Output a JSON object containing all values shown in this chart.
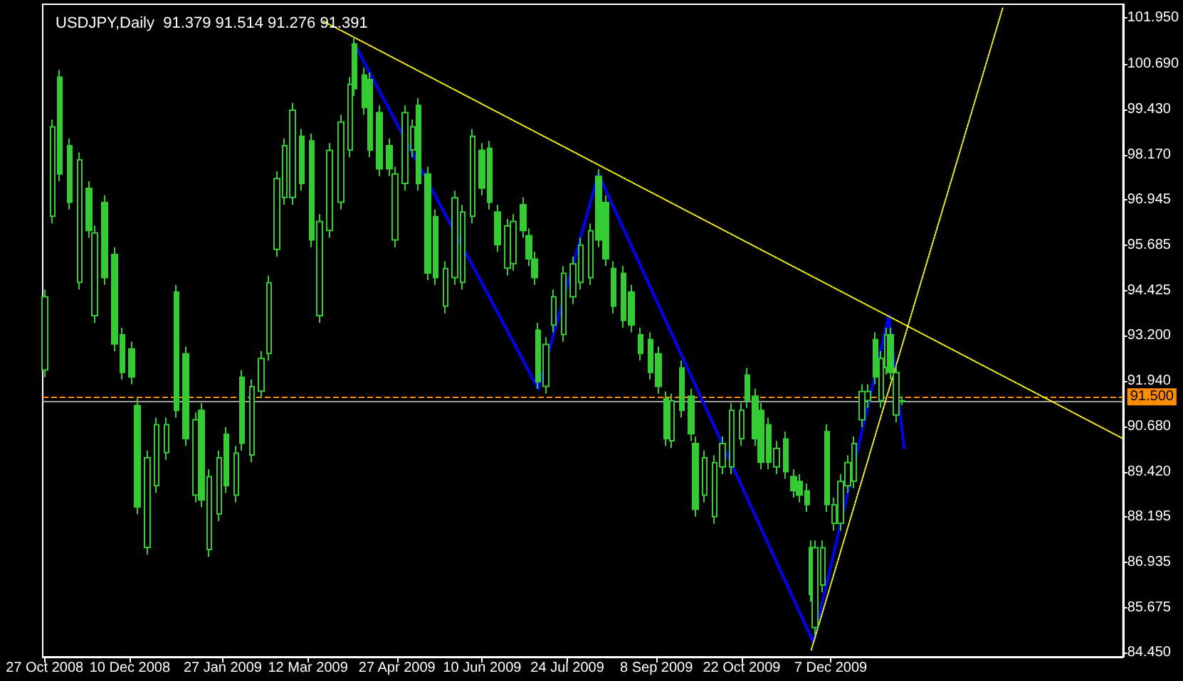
{
  "chart_data": {
    "type": "candlestick",
    "title": "USDJPY,Daily  91.379 91.514 91.276 91.391",
    "color": "#33cc33",
    "x": [
      "2008-10-27",
      "2008-10-31",
      "2008-11-04",
      "2008-11-09",
      "2008-11-14",
      "2008-11-19",
      "2008-11-22",
      "2008-11-27",
      "2008-12-02",
      "2008-12-06",
      "2008-12-11",
      "2008-12-14",
      "2008-12-19",
      "2008-12-24",
      "2008-12-29",
      "2009-01-03",
      "2009-01-08",
      "2009-01-13",
      "2009-01-16",
      "2009-01-20",
      "2009-01-25",
      "2009-01-29",
      "2009-02-03",
      "2009-02-06",
      "2009-02-11",
      "2009-02-16",
      "2009-02-20",
      "2009-02-24",
      "2009-02-28",
      "2009-03-04",
      "2009-03-09",
      "2009-03-14",
      "2009-03-18",
      "2009-03-23",
      "2009-03-29",
      "2009-04-03",
      "2009-04-05",
      "2009-04-10",
      "2009-04-13",
      "2009-04-18",
      "2009-04-23",
      "2009-04-26",
      "2009-05-01",
      "2009-05-05",
      "2009-05-08",
      "2009-05-13",
      "2009-05-17",
      "2009-05-22",
      "2009-05-27",
      "2009-05-31",
      "2009-06-05",
      "2009-06-10",
      "2009-06-14",
      "2009-06-18",
      "2009-06-23",
      "2009-06-26",
      "2009-07-01",
      "2009-07-04",
      "2009-07-07",
      "2009-07-09",
      "2009-07-13",
      "2009-07-17",
      "2009-07-22",
      "2009-07-27",
      "2009-07-31",
      "2009-08-05",
      "2009-08-09",
      "2009-08-13",
      "2009-08-17",
      "2009-08-22",
      "2009-08-26",
      "2009-08-31",
      "2009-09-05",
      "2009-09-09",
      "2009-09-13",
      "2009-09-16",
      "2009-09-21",
      "2009-09-26",
      "2009-09-28",
      "2009-10-03",
      "2009-10-08",
      "2009-10-12",
      "2009-10-17",
      "2009-10-22",
      "2009-10-25",
      "2009-10-29",
      "2009-11-01",
      "2009-11-05",
      "2009-11-09",
      "2009-11-14",
      "2009-11-18",
      "2009-11-21",
      "2009-11-25",
      "2009-11-27",
      "2009-11-29",
      "2009-12-03",
      "2009-12-05",
      "2009-12-09",
      "2009-12-12",
      "2009-12-16",
      "2009-12-19",
      "2009-12-23",
      "2009-12-26",
      "2009-12-30",
      "2010-01-02",
      "2010-01-05",
      "2010-01-07",
      "2010-01-10",
      "2010-01-13"
    ],
    "ohlc": [
      [
        92.24,
        94.46,
        92.04,
        94.26
      ],
      [
        96.48,
        99.15,
        96.28,
        98.95
      ],
      [
        100.32,
        100.52,
        97.45,
        97.65
      ],
      [
        98.43,
        98.63,
        96.67,
        96.87
      ],
      [
        94.66,
        98.24,
        94.46,
        98.04
      ],
      [
        97.25,
        97.45,
        95.89,
        96.09
      ],
      [
        93.74,
        96.22,
        93.54,
        96.02
      ],
      [
        96.86,
        97.06,
        94.59,
        94.79
      ],
      [
        95.43,
        95.63,
        92.76,
        92.96
      ],
      [
        93.21,
        93.41,
        91.98,
        92.18
      ],
      [
        92.82,
        93.02,
        91.85,
        92.05
      ],
      [
        91.26,
        91.46,
        88.26,
        88.46
      ],
      [
        87.35,
        90.02,
        87.15,
        89.82
      ],
      [
        89.05,
        90.93,
        88.85,
        90.73
      ],
      [
        89.96,
        90.93,
        89.76,
        90.73
      ],
      [
        94.39,
        94.59,
        90.93,
        91.13
      ],
      [
        92.69,
        92.89,
        90.15,
        90.35
      ],
      [
        88.79,
        91.07,
        88.59,
        90.87
      ],
      [
        91.13,
        91.33,
        88.46,
        88.66
      ],
      [
        87.29,
        89.5,
        87.09,
        89.3
      ],
      [
        88.27,
        90.02,
        88.07,
        89.82
      ],
      [
        90.47,
        90.67,
        88.85,
        89.05
      ],
      [
        88.79,
        90.15,
        88.59,
        89.95
      ],
      [
        92.04,
        92.24,
        90.02,
        90.22
      ],
      [
        89.9,
        91.98,
        89.7,
        91.78
      ],
      [
        91.66,
        92.76,
        91.46,
        92.56
      ],
      [
        92.7,
        94.85,
        92.5,
        94.65
      ],
      [
        95.57,
        97.72,
        95.37,
        97.52
      ],
      [
        97.0,
        98.63,
        96.8,
        98.43
      ],
      [
        97.0,
        99.61,
        96.8,
        99.41
      ],
      [
        98.69,
        98.89,
        97.19,
        97.39
      ],
      [
        98.56,
        98.76,
        95.63,
        95.83
      ],
      [
        93.74,
        96.54,
        93.54,
        96.34
      ],
      [
        96.09,
        98.5,
        95.89,
        98.3
      ],
      [
        96.87,
        99.28,
        96.67,
        99.08
      ],
      [
        98.31,
        100.32,
        98.11,
        100.12
      ],
      [
        101.23,
        101.43,
        99.8,
        100.0
      ],
      [
        100.38,
        100.58,
        99.28,
        99.48
      ],
      [
        100.25,
        100.45,
        98.11,
        98.31
      ],
      [
        99.34,
        99.54,
        97.59,
        97.79
      ],
      [
        98.43,
        98.63,
        97.59,
        97.79
      ],
      [
        95.83,
        97.85,
        95.63,
        97.65
      ],
      [
        97.39,
        99.54,
        97.19,
        99.34
      ],
      [
        98.31,
        99.15,
        98.11,
        98.95
      ],
      [
        99.54,
        99.74,
        97.19,
        97.39
      ],
      [
        97.65,
        97.85,
        94.72,
        94.92
      ],
      [
        96.47,
        96.67,
        94.59,
        94.79
      ],
      [
        94.0,
        95.24,
        93.8,
        95.04
      ],
      [
        94.79,
        97.19,
        94.59,
        96.99
      ],
      [
        94.66,
        96.8,
        94.46,
        96.6
      ],
      [
        96.48,
        98.89,
        96.28,
        98.69
      ],
      [
        98.3,
        98.5,
        97.06,
        97.26
      ],
      [
        98.36,
        98.56,
        96.67,
        96.87
      ],
      [
        96.6,
        96.8,
        95.5,
        95.7
      ],
      [
        95.05,
        96.41,
        94.85,
        96.21
      ],
      [
        95.18,
        96.54,
        94.98,
        96.34
      ],
      [
        96.8,
        97.0,
        95.89,
        96.09
      ],
      [
        95.95,
        96.15,
        95.11,
        95.31
      ],
      [
        95.3,
        95.5,
        94.59,
        94.79
      ],
      [
        93.34,
        93.54,
        91.72,
        91.92
      ],
      [
        91.79,
        93.15,
        91.59,
        92.95
      ],
      [
        93.48,
        94.46,
        93.28,
        94.26
      ],
      [
        93.22,
        95.11,
        93.02,
        94.91
      ],
      [
        94.26,
        95.37,
        94.06,
        95.17
      ],
      [
        94.66,
        95.89,
        94.46,
        95.69
      ],
      [
        94.79,
        96.28,
        94.59,
        96.08
      ],
      [
        97.58,
        97.78,
        95.63,
        95.83
      ],
      [
        96.86,
        97.06,
        95.11,
        95.31
      ],
      [
        95.04,
        95.24,
        93.8,
        94.0
      ],
      [
        94.91,
        95.11,
        93.41,
        93.61
      ],
      [
        94.39,
        94.59,
        93.28,
        93.48
      ],
      [
        93.21,
        93.41,
        92.5,
        92.7
      ],
      [
        93.08,
        93.28,
        91.98,
        92.18
      ],
      [
        92.69,
        92.89,
        91.59,
        91.79
      ],
      [
        91.45,
        91.65,
        90.15,
        90.35
      ],
      [
        90.29,
        91.59,
        90.09,
        91.39
      ],
      [
        92.3,
        92.5,
        90.93,
        91.13
      ],
      [
        91.52,
        91.72,
        90.28,
        90.48
      ],
      [
        90.21,
        90.41,
        88.2,
        88.4
      ],
      [
        88.79,
        90.02,
        88.59,
        89.82
      ],
      [
        88.2,
        89.89,
        88.0,
        89.69
      ],
      [
        89.57,
        90.41,
        89.37,
        90.21
      ],
      [
        89.57,
        91.33,
        89.37,
        91.13
      ],
      [
        90.35,
        91.33,
        90.15,
        91.13
      ],
      [
        92.1,
        92.3,
        91.2,
        91.4
      ],
      [
        91.52,
        91.72,
        90.15,
        90.35
      ],
      [
        91.13,
        91.33,
        89.5,
        89.7
      ],
      [
        90.73,
        90.93,
        89.5,
        89.7
      ],
      [
        89.57,
        90.28,
        89.37,
        90.08
      ],
      [
        90.34,
        90.54,
        89.24,
        89.44
      ],
      [
        89.3,
        89.5,
        88.72,
        88.92
      ],
      [
        89.17,
        89.37,
        88.59,
        88.79
      ],
      [
        88.91,
        89.11,
        88.33,
        88.53
      ],
      [
        87.34,
        87.54,
        85.85,
        86.05
      ],
      [
        85.14,
        87.54,
        84.94,
        87.34
      ],
      [
        86.31,
        87.54,
        86.11,
        87.34
      ],
      [
        90.54,
        90.74,
        88.33,
        88.53
      ],
      [
        88.01,
        88.72,
        87.81,
        88.52
      ],
      [
        88.01,
        89.37,
        87.81,
        89.17
      ],
      [
        89.05,
        89.89,
        88.85,
        89.69
      ],
      [
        89.18,
        90.41,
        88.98,
        90.21
      ],
      [
        90.87,
        91.85,
        90.67,
        91.65
      ],
      [
        91.4,
        91.85,
        91.2,
        91.65
      ],
      [
        93.08,
        93.28,
        91.85,
        92.05
      ],
      [
        91.4,
        92.76,
        91.2,
        92.56
      ],
      [
        92.31,
        93.41,
        92.11,
        93.21
      ],
      [
        93.21,
        93.41,
        91.98,
        92.18
      ],
      [
        91.0,
        92.37,
        90.8,
        92.17
      ],
      [
        91.379,
        91.514,
        91.276,
        91.391
      ]
    ],
    "series": [
      {
        "type": "line",
        "color": "#0000ff",
        "line_style": "solid",
        "x": [
          "2009-04-05",
          "2009-07-09",
          "2009-08-09",
          "2009-11-28",
          "2010-01-06",
          "2010-01-14"
        ],
        "values": [
          101.23,
          91.72,
          97.65,
          84.74,
          93.74,
          90.09
        ]
      },
      {
        "type": "line",
        "color": "#ffff00",
        "line_style": "dotted",
        "x": [
          "2009-03-20",
          "2010-05-07"
        ],
        "values": [
          101.86,
          90.35
        ]
      },
      {
        "type": "line",
        "color": "#ffff00",
        "line_style": "dotted",
        "x": [
          "2009-11-27",
          "2010-03-06"
        ],
        "values": [
          84.52,
          102.25
        ]
      }
    ],
    "ref_lines": [
      {
        "axis": "y",
        "value": 91.5,
        "label": "91.500",
        "color": "#ff8c00",
        "line_style": "dashed"
      },
      {
        "axis": "y",
        "value": 91.391,
        "label": null,
        "color": "#a0a0a0",
        "line_style": "solid"
      }
    ],
    "marker": "none",
    "grid": false,
    "xlim": [
      "2008-10-26",
      "2010-05-07"
    ],
    "xticks": [
      {
        "value": "2008-10-27",
        "label": "27 Oct 2008"
      },
      {
        "value": "2008-12-10",
        "label": "10 Dec 2008"
      },
      {
        "value": "2009-01-27",
        "label": "27 Jan 2009"
      },
      {
        "value": "2009-03-12",
        "label": "12 Mar 2009"
      },
      {
        "value": "2009-04-27",
        "label": "27 Apr 2009"
      },
      {
        "value": "2009-06-10",
        "label": "10 Jun 2009"
      },
      {
        "value": "2009-07-24",
        "label": "24 Jul 2009"
      },
      {
        "value": "2009-09-08",
        "label": "8 Sep 2009"
      },
      {
        "value": "2009-10-22",
        "label": "22 Oct 2009"
      },
      {
        "value": "2009-12-07",
        "label": "7 Dec 2009"
      }
    ],
    "ylim": [
      84.33,
      102.33
    ],
    "yticks": [
      {
        "value": 84.45,
        "label": "84.450"
      },
      {
        "value": 85.675,
        "label": "85.675"
      },
      {
        "value": 86.935,
        "label": "86.935"
      },
      {
        "value": 88.195,
        "label": "88.195"
      },
      {
        "value": 89.42,
        "label": "89.420"
      },
      {
        "value": 90.68,
        "label": "90.680"
      },
      {
        "value": 91.94,
        "label": "91.940"
      },
      {
        "value": 93.2,
        "label": "93.200"
      },
      {
        "value": 94.425,
        "label": "94.425"
      },
      {
        "value": 95.685,
        "label": "95.685"
      },
      {
        "value": 96.945,
        "label": "96.945"
      },
      {
        "value": 98.17,
        "label": "98.170"
      },
      {
        "value": 99.43,
        "label": "99.430"
      },
      {
        "value": 100.69,
        "label": "100.690"
      },
      {
        "value": 101.95,
        "label": "101.950"
      }
    ]
  }
}
